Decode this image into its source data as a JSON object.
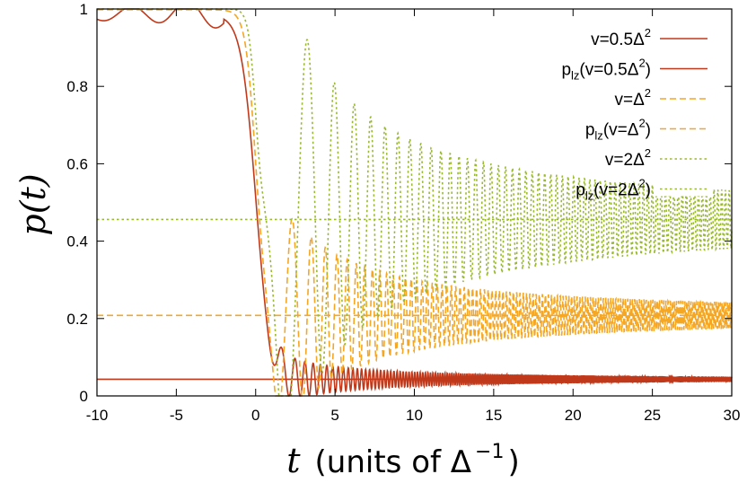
{
  "chart_data": {
    "type": "line",
    "xlabel": {
      "var": "t",
      "text": "(units of Δ",
      "exp": "−1",
      "close": ")"
    },
    "ylabel": {
      "text": "p(t)"
    },
    "xlim": [
      -10,
      30
    ],
    "ylim": [
      0,
      1
    ],
    "xticks": [
      -10,
      -5,
      0,
      5,
      10,
      15,
      20,
      25,
      30
    ],
    "yticks": [
      0,
      0.2,
      0.4,
      0.6,
      0.8,
      1
    ],
    "grid": false,
    "legend_position": "top-right",
    "series": [
      {
        "name": "v=0.5Δ²",
        "label_base": "v=0.5Δ",
        "label_sup": "2",
        "label_tail": "",
        "color": "#c0391b",
        "dash": "solid",
        "kind": "curve",
        "v": 0.5,
        "p_lz": 0.043,
        "start_value": 0.985,
        "transition_width": 1.0
      },
      {
        "name": "p_lz(v=0.5Δ²)",
        "label_base": "p",
        "label_sub": "lz",
        "label_mid": "(v=0.5Δ",
        "label_sup": "2",
        "label_tail": ")",
        "color": "#c0391b",
        "dash": "solid",
        "kind": "constant",
        "value": 0.043
      },
      {
        "name": "v=Δ²",
        "label_base": "v=Δ",
        "label_sup": "2",
        "label_tail": "",
        "color": "#f5a623",
        "dash": "dashed",
        "kind": "curve",
        "v": 1,
        "p_lz": 0.208,
        "start_value": 0.998,
        "transition_width": 0.7
      },
      {
        "name": "p_lz(v=Δ²)",
        "label_base": "p",
        "label_sub": "lz",
        "label_mid": "(v=Δ",
        "label_sup": "2",
        "label_tail": ")",
        "color": "#f5a623",
        "dash": "dashed",
        "kind": "constant",
        "value": 0.208
      },
      {
        "name": "v=2Δ²",
        "label_base": "v=2Δ",
        "label_sup": "2",
        "label_tail": "",
        "color": "#9aba2e",
        "dash": "dotted",
        "kind": "curve",
        "v": 2,
        "p_lz": 0.456,
        "start_value": 1.0,
        "transition_width": 0.5
      },
      {
        "name": "p_lz(v=2Δ²)",
        "label_base": "p",
        "label_sub": "lz",
        "label_mid": "(v=2Δ",
        "label_sup": "2",
        "label_tail": ")",
        "color": "#9aba2e",
        "dash": "dotted",
        "kind": "constant",
        "value": 0.456
      }
    ]
  }
}
